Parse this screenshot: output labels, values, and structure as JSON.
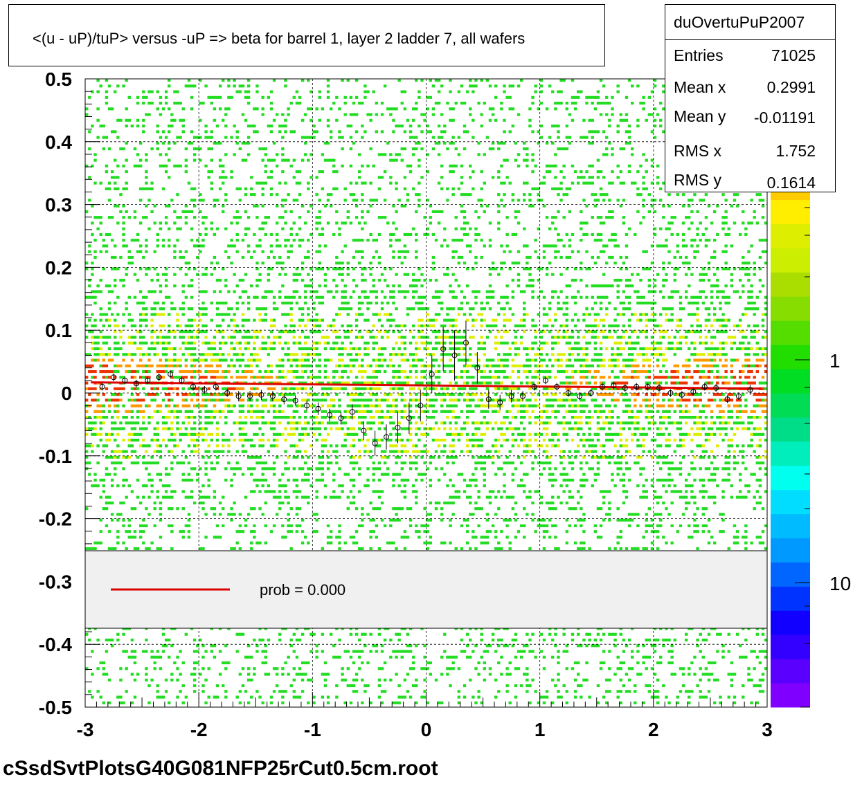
{
  "title": "<(u - uP)/tuP> versus  -uP => beta for barrel 1, layer 2 ladder 7, all wafers",
  "stats": {
    "name": "duOvertuPuP2007",
    "rows": [
      {
        "label": "Entries",
        "value": "71025"
      },
      {
        "label": "Mean x",
        "value": "0.2991"
      },
      {
        "label": "Mean y",
        "value": "-0.01191"
      },
      {
        "label": "RMS x",
        "value": "1.752"
      },
      {
        "label": "RMS y",
        "value": "0.1614"
      }
    ]
  },
  "legend": {
    "entry": "prob = 0.000",
    "line_color": "#dd0000"
  },
  "filename": "cSsdSvtPlotsG40G081NFP25rCut0.5cm.root",
  "colors": {
    "hist_green": "#22dd22",
    "hist_yellow": "#ddee00",
    "hist_orange": "#ff9900",
    "hist_red": "#ee3300",
    "fit_line": "#dd0000",
    "legend_bg": "#f0f0f0"
  },
  "chart_data": {
    "type": "heatmap",
    "title": "<(u - uP)/tuP> versus  -uP => beta for barrel 1, layer 2 ladder 7, all wafers",
    "xlim": [
      -3,
      3
    ],
    "ylim": [
      -0.5,
      0.5
    ],
    "x_ticks": [
      "-3",
      "-2",
      "-1",
      "0",
      "1",
      "2",
      "3"
    ],
    "y_ticks": [
      "-0.5",
      "-0.4",
      "-0.3",
      "-0.2",
      "-0.1",
      "0",
      "0.1",
      "0.2",
      "0.3",
      "0.4",
      "0.5"
    ],
    "grid": true,
    "colorbar": {
      "tick_labels": [
        "1",
        "10"
      ],
      "colors": [
        "#7f00ff",
        "#5a00ff",
        "#3300ff",
        "#1100ff",
        "#0033ff",
        "#0066ff",
        "#0099ff",
        "#00bbff",
        "#00ddff",
        "#00ffee",
        "#00eebb",
        "#00dd88",
        "#00dd55",
        "#00dd22",
        "#22dd00",
        "#55dd00",
        "#88dd00",
        "#aadd00",
        "#ccee00",
        "#ddee00",
        "#ffee00",
        "#ffcc00",
        "#ffaa00",
        "#ff8800",
        "#ff6600",
        "#ff4400"
      ]
    },
    "fit_line": {
      "x": [
        -2.95,
        2.95
      ],
      "y": [
        0.017,
        0.007
      ]
    },
    "profile": {
      "x": [
        -2.85,
        -2.75,
        -2.65,
        -2.55,
        -2.45,
        -2.35,
        -2.25,
        -2.15,
        -2.05,
        -1.95,
        -1.85,
        -1.75,
        -1.65,
        -1.55,
        -1.45,
        -1.35,
        -1.25,
        -1.15,
        -1.05,
        -0.95,
        -0.85,
        -0.75,
        -0.65,
        -0.55,
        -0.45,
        -0.35,
        -0.25,
        -0.15,
        -0.05,
        0.05,
        0.15,
        0.25,
        0.35,
        0.45,
        0.55,
        0.65,
        0.75,
        0.85,
        0.95,
        1.05,
        1.15,
        1.25,
        1.35,
        1.45,
        1.55,
        1.65,
        1.75,
        1.85,
        1.95,
        2.05,
        2.15,
        2.25,
        2.35,
        2.45,
        2.55,
        2.65,
        2.75,
        2.85
      ],
      "y": [
        0.01,
        0.025,
        0.02,
        0.015,
        0.02,
        0.025,
        0.03,
        0.02,
        0.01,
        0.005,
        0.01,
        0.0,
        -0.005,
        -0.005,
        -0.003,
        -0.005,
        -0.01,
        -0.012,
        -0.02,
        -0.025,
        -0.035,
        -0.04,
        -0.03,
        -0.06,
        -0.08,
        -0.07,
        -0.055,
        -0.04,
        -0.02,
        0.03,
        0.07,
        0.06,
        0.08,
        0.04,
        -0.01,
        -0.015,
        -0.005,
        -0.005,
        0.01,
        0.02,
        0.01,
        0.0,
        -0.005,
        0.0,
        0.01,
        0.012,
        0.008,
        0.01,
        0.01,
        0.008,
        0.0,
        -0.003,
        0.002,
        0.01,
        0.008,
        -0.01,
        -0.005,
        0.005
      ],
      "err": [
        0.006,
        0.006,
        0.006,
        0.006,
        0.006,
        0.006,
        0.006,
        0.006,
        0.006,
        0.006,
        0.006,
        0.006,
        0.008,
        0.008,
        0.008,
        0.008,
        0.008,
        0.008,
        0.008,
        0.01,
        0.01,
        0.01,
        0.012,
        0.015,
        0.02,
        0.02,
        0.025,
        0.025,
        0.025,
        0.03,
        0.035,
        0.04,
        0.035,
        0.025,
        0.015,
        0.012,
        0.01,
        0.008,
        0.006,
        0.006,
        0.006,
        0.006,
        0.006,
        0.006,
        0.006,
        0.006,
        0.006,
        0.006,
        0.006,
        0.006,
        0.006,
        0.006,
        0.006,
        0.006,
        0.006,
        0.006,
        0.006,
        0.008
      ]
    }
  }
}
